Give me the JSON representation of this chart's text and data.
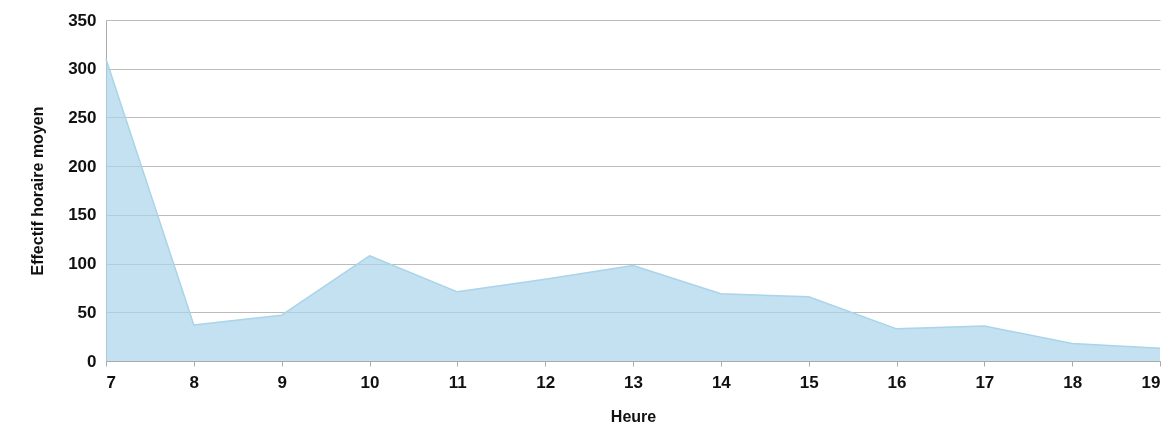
{
  "chart_data": {
    "type": "area",
    "xlabel": "Heure",
    "ylabel": "Effectif horaire moyen",
    "x": [
      7,
      8,
      9,
      10,
      11,
      12,
      13,
      14,
      15,
      16,
      17,
      18,
      19
    ],
    "series": [
      {
        "color": "#a9d4ea",
        "values": [
          310,
          37,
          47,
          108,
          71,
          84,
          98,
          69,
          66,
          33,
          36,
          18,
          13
        ]
      }
    ],
    "xlim": [
      7,
      19
    ],
    "xticks": [
      7,
      8,
      9,
      10,
      11,
      12,
      13,
      14,
      15,
      16,
      17,
      18,
      19
    ],
    "ylim": [
      0,
      350
    ],
    "yticks": [
      0,
      50,
      100,
      150,
      200,
      250,
      300,
      350
    ],
    "grid": "y"
  }
}
